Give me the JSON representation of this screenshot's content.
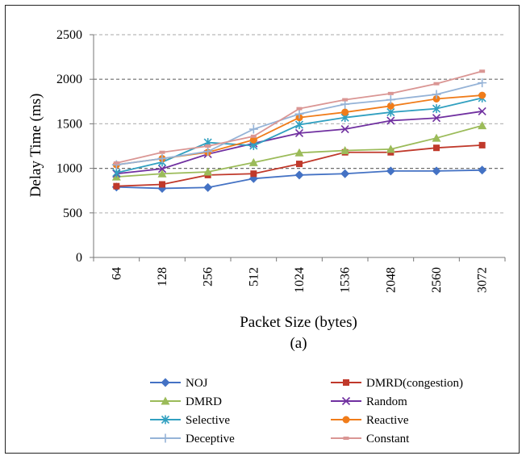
{
  "chart_data": {
    "type": "line",
    "xlabel": "Packet Size (bytes)",
    "subtitle": "(a)",
    "ylabel": "Delay Time (ms)",
    "ylim": [
      0,
      2500
    ],
    "yticks": [
      0,
      500,
      1000,
      1500,
      2000,
      2500
    ],
    "grid": "horizontal dashed",
    "legend_position": "bottom",
    "categories": [
      "64",
      "128",
      "256",
      "512",
      "1024",
      "1536",
      "2048",
      "2560",
      "3072"
    ],
    "series": [
      {
        "name": "NOJ",
        "color": "#4472c4",
        "marker": "diamond",
        "values": [
          790,
          775,
          785,
          885,
          925,
          940,
          970,
          970,
          980
        ]
      },
      {
        "name": "DMRD(congestion)",
        "color": "#c0392b",
        "marker": "square",
        "values": [
          800,
          820,
          925,
          940,
          1050,
          1180,
          1180,
          1230,
          1260
        ]
      },
      {
        "name": "DMRD",
        "color": "#9bbb59",
        "marker": "triangle",
        "values": [
          905,
          940,
          960,
          1065,
          1175,
          1200,
          1215,
          1340,
          1480
        ]
      },
      {
        "name": "Random",
        "color": "#7030a0",
        "marker": "x",
        "values": [
          940,
          995,
          1160,
          1280,
          1395,
          1440,
          1535,
          1565,
          1640
        ]
      },
      {
        "name": "Selective",
        "color": "#31a0c0",
        "marker": "star",
        "values": [
          950,
          1070,
          1290,
          1255,
          1490,
          1570,
          1630,
          1670,
          1790
        ]
      },
      {
        "name": "Reactive",
        "color": "#f07c1a",
        "marker": "circle",
        "values": [
          1040,
          1110,
          1180,
          1320,
          1570,
          1630,
          1700,
          1780,
          1820
        ]
      },
      {
        "name": "Deceptive",
        "color": "#95b3d7",
        "marker": "plus",
        "values": [
          1040,
          1110,
          1190,
          1440,
          1610,
          1720,
          1770,
          1830,
          1960
        ]
      },
      {
        "name": "Constant",
        "color": "#da9694",
        "marker": "dash",
        "values": [
          1060,
          1180,
          1250,
          1360,
          1670,
          1770,
          1840,
          1950,
          2090
        ]
      }
    ]
  }
}
